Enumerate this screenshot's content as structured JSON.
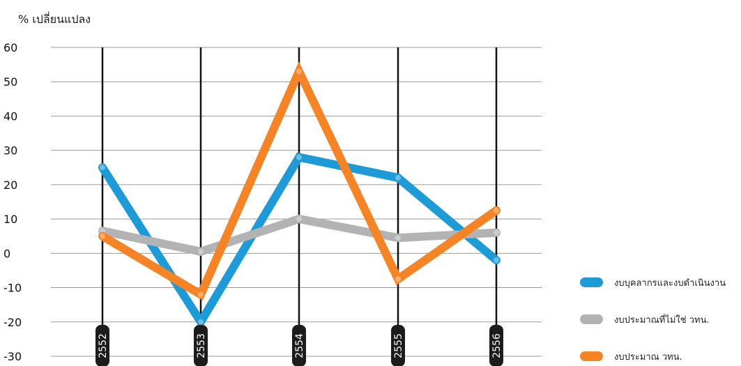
{
  "chart_data": {
    "type": "line",
    "ylabel": "% เปลี่ยนแปลง",
    "categories": [
      "2552",
      "2553",
      "2554",
      "2555",
      "2556"
    ],
    "ylim": [
      -30,
      60
    ],
    "yticks": [
      60,
      50,
      40,
      30,
      20,
      10,
      0,
      -10,
      -20,
      -30
    ],
    "grid": true,
    "legend_position": "right",
    "series": [
      {
        "name": "งบบุคลากรและงบดำเนินงาน",
        "color": "#1e9bd7",
        "values": [
          25,
          -20,
          28,
          22,
          -2
        ]
      },
      {
        "name": "งบประมาณที่ไม่ใช่ วทน.",
        "color": "#b3b3b3",
        "values": [
          6.5,
          0.5,
          10,
          4.5,
          6
        ]
      },
      {
        "name": "งบประมาณ วทน.",
        "color": "#f58426",
        "values": [
          5,
          -12,
          53,
          -7.5,
          12.5
        ]
      }
    ]
  }
}
